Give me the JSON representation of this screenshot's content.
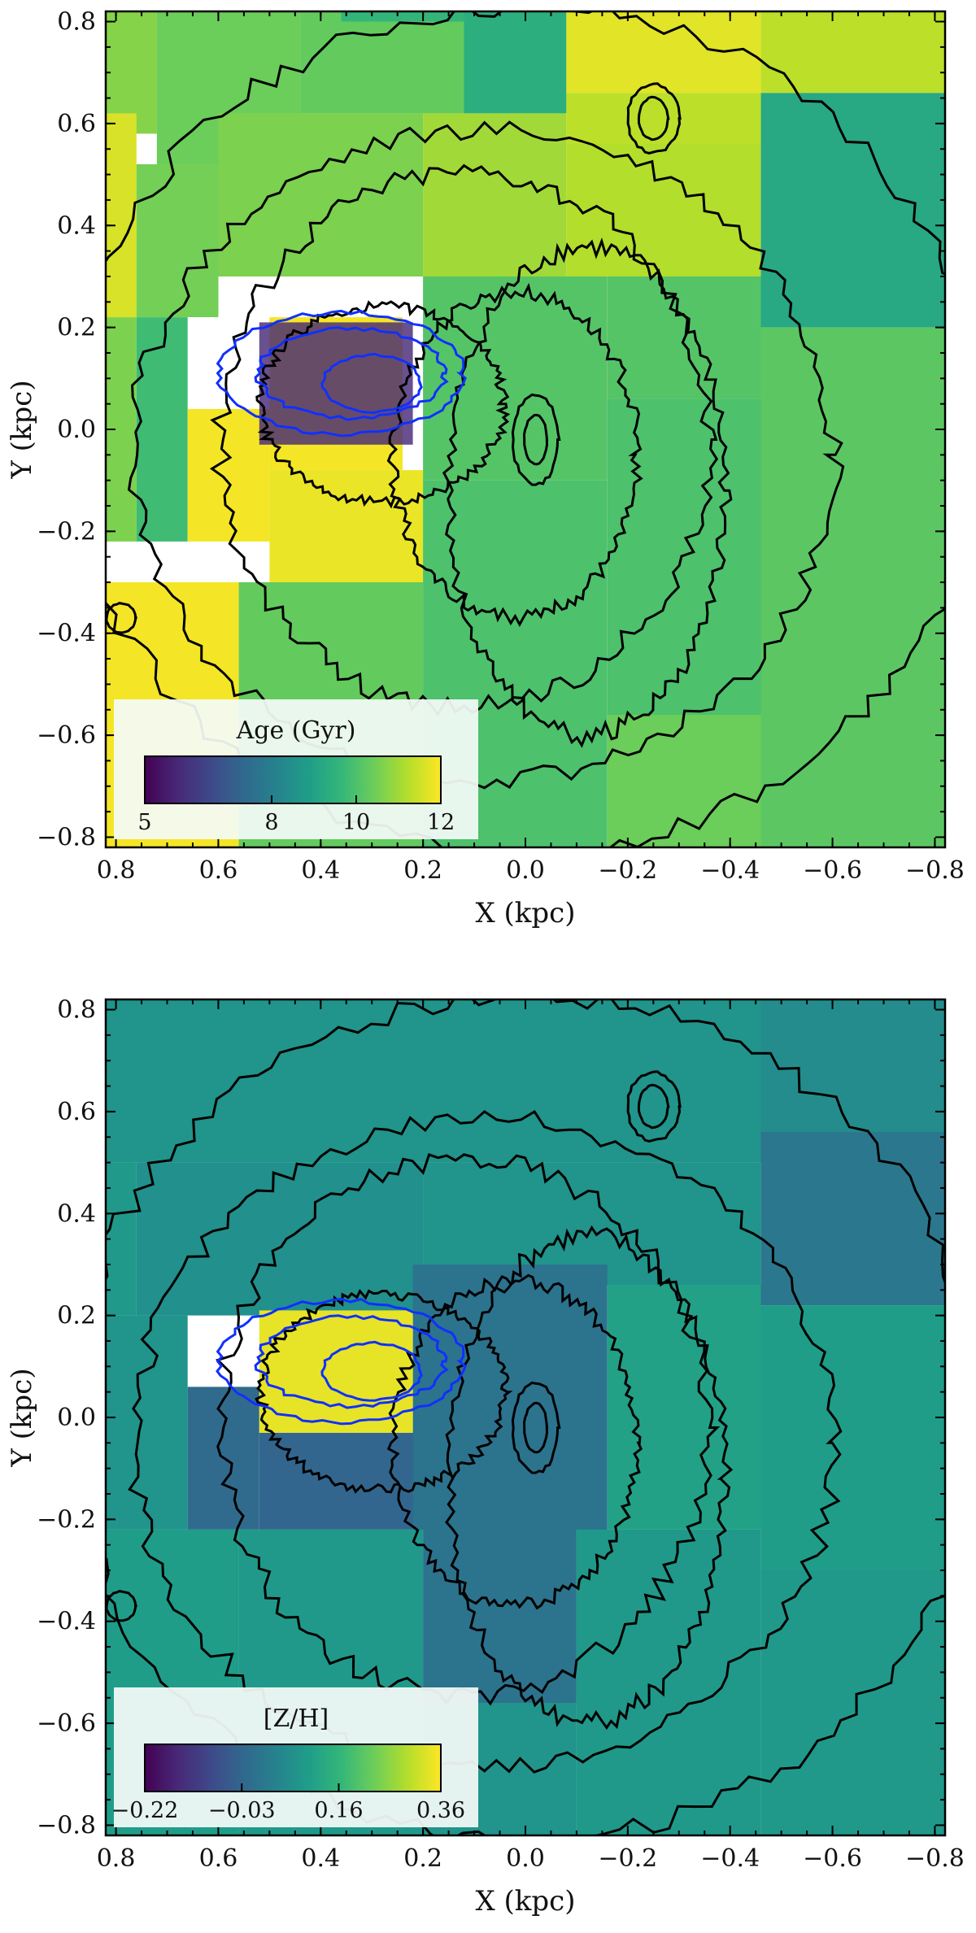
{
  "chart_data": [
    {
      "type": "heatmap",
      "title": "",
      "xlabel": "X (kpc)",
      "ylabel": "Y (kpc)",
      "xlim": [
        0.82,
        -0.82
      ],
      "ylim": [
        -0.82,
        0.82
      ],
      "xticks": [
        0.8,
        0.6,
        0.4,
        0.2,
        0.0,
        -0.2,
        -0.4,
        -0.6,
        -0.8
      ],
      "yticks": [
        0.8,
        0.6,
        0.4,
        0.2,
        0.0,
        -0.2,
        -0.4,
        -0.6,
        -0.8
      ],
      "xtick_labels": [
        "0.8",
        "0.6",
        "0.4",
        "0.2",
        "0.0",
        "−0.2",
        "−0.4",
        "−0.6",
        "−0.8"
      ],
      "ytick_labels": [
        "0.8",
        "0.6",
        "0.4",
        "0.2",
        "0.0",
        "−0.2",
        "−0.4",
        "−0.6",
        "−0.8"
      ],
      "colorbar": {
        "label": "Age (Gyr)",
        "vmin": 5,
        "vmax": 12,
        "ticks": [
          5,
          8,
          10,
          12
        ],
        "tick_labels": [
          "5",
          "8",
          "10",
          "12"
        ],
        "location": "lower-left",
        "colormap": "viridis"
      },
      "cells": [
        {
          "x": [
            0.82,
            0.72
          ],
          "y": [
            0.58,
            0.82
          ],
          "v": 10.7
        },
        {
          "x": [
            0.72,
            0.44
          ],
          "y": [
            0.52,
            0.82
          ],
          "v": 10.4
        },
        {
          "x": [
            0.44,
            0.12
          ],
          "y": [
            0.62,
            0.82
          ],
          "v": 10.3
        },
        {
          "x": [
            0.36,
            0.12
          ],
          "y": [
            0.8,
            0.82
          ],
          "v": 9.6
        },
        {
          "x": [
            0.12,
            -0.08
          ],
          "y": [
            0.62,
            0.82
          ],
          "v": 9.4
        },
        {
          "x": [
            -0.08,
            -0.46
          ],
          "y": [
            0.66,
            0.82
          ],
          "v": 11.7
        },
        {
          "x": [
            -0.46,
            -0.82
          ],
          "y": [
            0.66,
            0.82
          ],
          "v": 11.3
        },
        {
          "x": [
            0.82,
            0.76
          ],
          "y": [
            0.22,
            0.62
          ],
          "v": 11.6
        },
        {
          "x": [
            0.76,
            0.6
          ],
          "y": [
            0.22,
            0.52
          ],
          "v": 10.5
        },
        {
          "x": [
            0.6,
            0.2
          ],
          "y": [
            0.3,
            0.62
          ],
          "v": 10.6
        },
        {
          "x": [
            0.2,
            -0.08
          ],
          "y": [
            0.3,
            0.62
          ],
          "v": 11.0
        },
        {
          "x": [
            -0.08,
            -0.46
          ],
          "y": [
            0.56,
            0.66
          ],
          "v": 11.3
        },
        {
          "x": [
            -0.08,
            -0.46
          ],
          "y": [
            0.3,
            0.56
          ],
          "v": 11.2
        },
        {
          "x": [
            -0.46,
            -0.82
          ],
          "y": [
            0.2,
            0.66
          ],
          "v": 9.2
        },
        {
          "x": [
            0.82,
            0.76
          ],
          "y": [
            -0.22,
            0.22
          ],
          "v": 10.6
        },
        {
          "x": [
            0.76,
            0.66
          ],
          "y": [
            -0.22,
            0.22
          ],
          "v": 9.8
        },
        {
          "x": [
            0.66,
            0.5
          ],
          "y": [
            -0.22,
            0.04
          ],
          "v": 11.9
        },
        {
          "x": [
            0.5,
            0.24
          ],
          "y": [
            -0.08,
            0.22
          ],
          "v": 11.9
        },
        {
          "x": [
            0.5,
            0.2
          ],
          "y": [
            -0.3,
            -0.08
          ],
          "v": 11.8
        },
        {
          "x": [
            0.2,
            -0.16
          ],
          "y": [
            -0.1,
            0.3
          ],
          "v": 10.1
        },
        {
          "x": [
            -0.16,
            -0.46
          ],
          "y": [
            0.06,
            0.3
          ],
          "v": 10.1
        },
        {
          "x": [
            -0.46,
            -0.82
          ],
          "y": [
            -0.3,
            0.2
          ],
          "v": 10.2
        },
        {
          "x": [
            0.82,
            0.56
          ],
          "y": [
            -0.82,
            -0.3
          ],
          "v": 11.9
        },
        {
          "x": [
            0.56,
            0.2
          ],
          "y": [
            -0.82,
            -0.3
          ],
          "v": 10.3
        },
        {
          "x": [
            0.2,
            -0.16
          ],
          "y": [
            -0.82,
            -0.1
          ],
          "v": 10.0
        },
        {
          "x": [
            -0.16,
            -0.46
          ],
          "y": [
            -0.56,
            0.06
          ],
          "v": 10.0
        },
        {
          "x": [
            -0.46,
            -0.82
          ],
          "y": [
            -0.82,
            -0.3
          ],
          "v": 10.2
        },
        {
          "x": [
            -0.16,
            -0.46
          ],
          "y": [
            -0.82,
            -0.56
          ],
          "v": 10.4
        },
        {
          "x": [
            0.52,
            0.22
          ],
          "y": [
            -0.03,
            0.21
          ],
          "v": 5.8
        }
      ]
    },
    {
      "type": "heatmap",
      "title": "",
      "xlabel": "X (kpc)",
      "ylabel": "Y (kpc)",
      "xlim": [
        0.82,
        -0.82
      ],
      "ylim": [
        -0.82,
        0.82
      ],
      "xticks": [
        0.8,
        0.6,
        0.4,
        0.2,
        0.0,
        -0.2,
        -0.4,
        -0.6,
        -0.8
      ],
      "yticks": [
        0.8,
        0.6,
        0.4,
        0.2,
        0.0,
        -0.2,
        -0.4,
        -0.6,
        -0.8
      ],
      "xtick_labels": [
        "0.8",
        "0.6",
        "0.4",
        "0.2",
        "0.0",
        "−0.2",
        "−0.4",
        "−0.6",
        "−0.8"
      ],
      "ytick_labels": [
        "0.8",
        "0.6",
        "0.4",
        "0.2",
        "0.0",
        "−0.2",
        "−0.4",
        "−0.6",
        "−0.8"
      ],
      "colorbar": {
        "label": "[Z/H]",
        "vmin": -0.22,
        "vmax": 0.36,
        "ticks": [
          -0.22,
          -0.03,
          0.16,
          0.36
        ],
        "tick_labels": [
          "−0.22",
          "−0.03",
          "0.16",
          "0.36"
        ],
        "location": "lower-left",
        "colormap": "viridis"
      },
      "cells": [
        {
          "x": [
            0.82,
            -0.46
          ],
          "y": [
            0.5,
            0.82
          ],
          "v": 0.08
        },
        {
          "x": [
            -0.46,
            -0.82
          ],
          "y": [
            0.56,
            0.82
          ],
          "v": 0.06
        },
        {
          "x": [
            0.82,
            0.76
          ],
          "y": [
            0.2,
            0.5
          ],
          "v": 0.09
        },
        {
          "x": [
            0.76,
            0.2
          ],
          "y": [
            0.2,
            0.5
          ],
          "v": 0.07
        },
        {
          "x": [
            0.2,
            -0.46
          ],
          "y": [
            0.26,
            0.5
          ],
          "v": 0.08
        },
        {
          "x": [
            -0.46,
            -0.82
          ],
          "y": [
            0.22,
            0.56
          ],
          "v": 0.01
        },
        {
          "x": [
            0.82,
            0.66
          ],
          "y": [
            -0.22,
            0.2
          ],
          "v": 0.08
        },
        {
          "x": [
            0.66,
            0.52
          ],
          "y": [
            -0.22,
            0.06
          ],
          "v": -0.02
        },
        {
          "x": [
            0.52,
            0.2
          ],
          "y": [
            -0.22,
            -0.03
          ],
          "v": -0.03
        },
        {
          "x": [
            0.22,
            -0.16
          ],
          "y": [
            -0.22,
            0.3
          ],
          "v": 0.0
        },
        {
          "x": [
            -0.16,
            -0.46
          ],
          "y": [
            -0.22,
            0.26
          ],
          "v": 0.11
        },
        {
          "x": [
            -0.46,
            -0.82
          ],
          "y": [
            -0.3,
            0.22
          ],
          "v": 0.1
        },
        {
          "x": [
            0.82,
            0.56
          ],
          "y": [
            -0.82,
            -0.22
          ],
          "v": 0.1
        },
        {
          "x": [
            0.56,
            0.2
          ],
          "y": [
            -0.82,
            -0.22
          ],
          "v": 0.09
        },
        {
          "x": [
            0.2,
            -0.1
          ],
          "y": [
            -0.56,
            -0.22
          ],
          "v": 0.0
        },
        {
          "x": [
            0.2,
            -0.1
          ],
          "y": [
            -0.82,
            -0.56
          ],
          "v": 0.08
        },
        {
          "x": [
            -0.1,
            -0.46
          ],
          "y": [
            -0.82,
            -0.22
          ],
          "v": 0.09
        },
        {
          "x": [
            -0.46,
            -0.82
          ],
          "y": [
            -0.82,
            -0.3
          ],
          "v": 0.09
        },
        {
          "x": [
            0.52,
            0.22
          ],
          "y": [
            -0.03,
            0.21
          ],
          "v": 0.34
        }
      ]
    }
  ]
}
